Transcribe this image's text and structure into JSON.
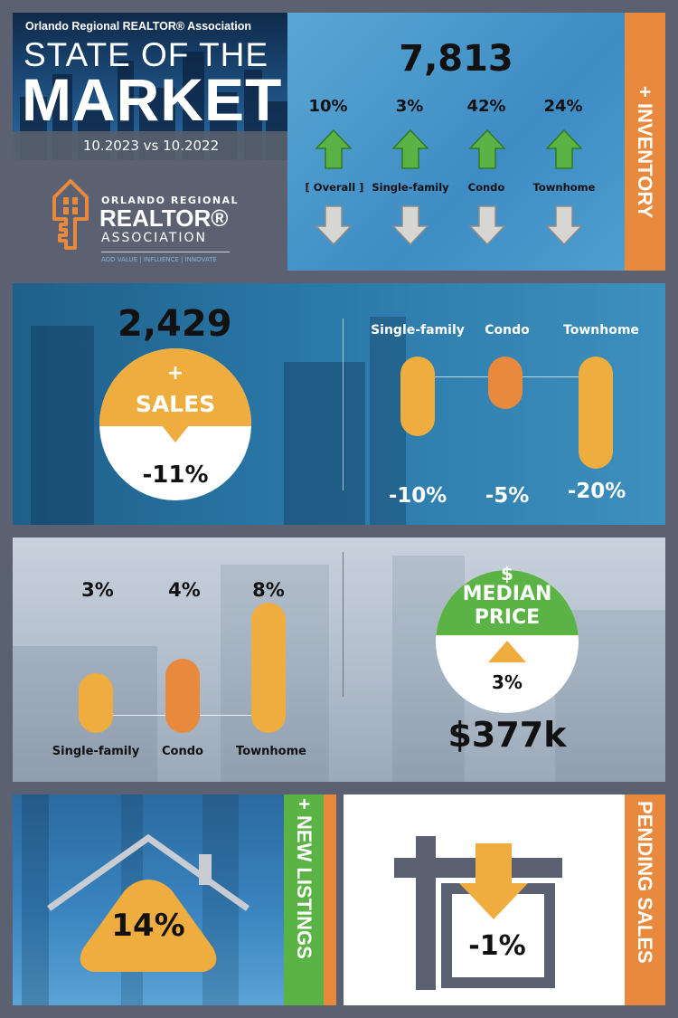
{
  "header": {
    "org_line": "Orlando Regional REALTOR® Association",
    "title_line1": "STATE OF THE",
    "title_line2": "MARKET",
    "date_range": "10.2023 vs 10.2022"
  },
  "logo": {
    "org": "ORLANDO REGIONAL",
    "realtor": "REALTOR®",
    "association": "ASSOCIATION",
    "tagline": "ADD VALUE | INFLUENCE | INNOVATE"
  },
  "inventory": {
    "side_label": "+ INVENTORY",
    "total": "7,813",
    "items": [
      {
        "pct": "10%",
        "label": "[ Overall ]",
        "direction": "up"
      },
      {
        "pct": "3%",
        "label": "Single-family",
        "direction": "up"
      },
      {
        "pct": "42%",
        "label": "Condo",
        "direction": "up"
      },
      {
        "pct": "24%",
        "label": "Townhome",
        "direction": "up"
      }
    ]
  },
  "sales": {
    "total": "2,429",
    "plus": "+",
    "label": "SALES",
    "change": "-11%",
    "columns": [
      {
        "label": "Single-family",
        "pct": "-10%",
        "value": -10
      },
      {
        "label": "Condo",
        "pct": "-5%",
        "value": -5
      },
      {
        "label": "Townhome",
        "pct": "-20%",
        "value": -20
      }
    ]
  },
  "median_price": {
    "dollar": "$",
    "label_line1": "MEDIAN",
    "label_line2": "PRICE",
    "change": "3%",
    "price": "$377k",
    "columns": [
      {
        "label": "Single-family",
        "pct": "3%",
        "value": 3
      },
      {
        "label": "Condo",
        "pct": "4%",
        "value": 4
      },
      {
        "label": "Townhome",
        "pct": "8%",
        "value": 8
      }
    ]
  },
  "new_listings": {
    "side_label": "+ NEW LISTINGS",
    "change": "14%"
  },
  "pending_sales": {
    "side_label": "PENDING SALES",
    "change": "-1%"
  },
  "colors": {
    "orange": "#e9893e",
    "gold": "#efad3f",
    "green": "#5bb345",
    "grey_arrow": "#d8d6d2"
  }
}
